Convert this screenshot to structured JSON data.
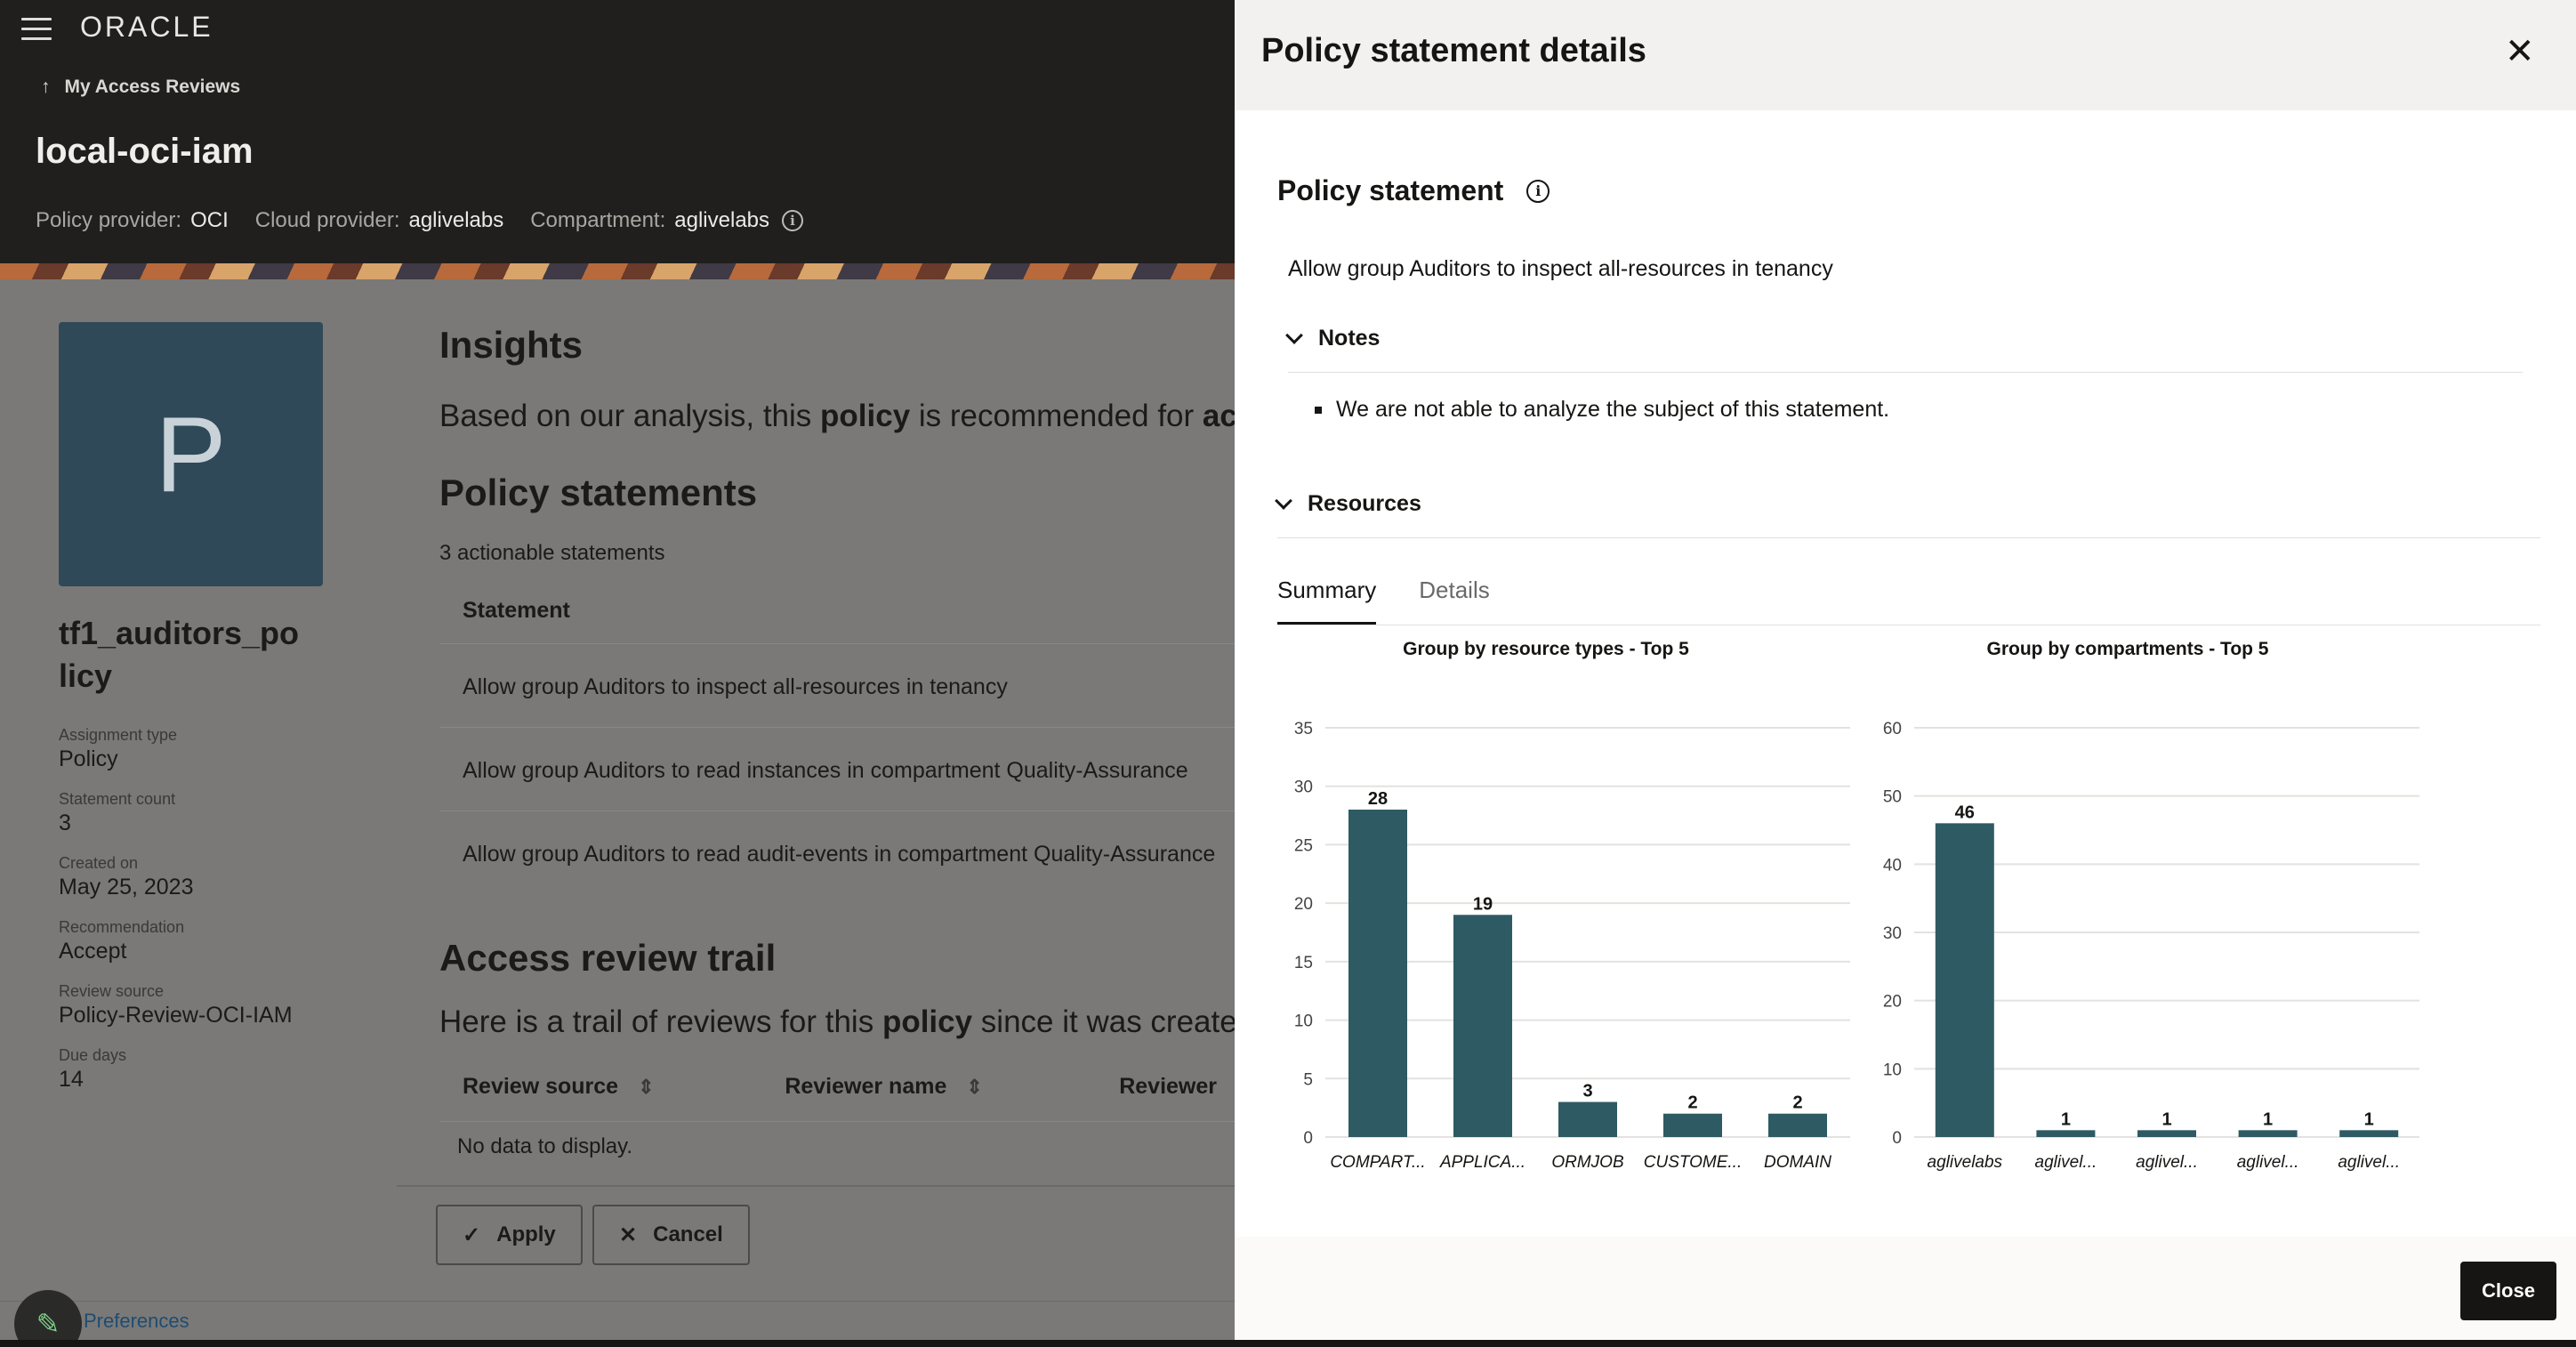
{
  "header": {
    "brand": "ORACLE",
    "back_link": "My Access Reviews",
    "title": "local-oci-iam",
    "policy_provider_label": "Policy provider:",
    "policy_provider": "OCI",
    "cloud_provider_label": "Cloud provider:",
    "cloud_provider": "aglivelabs",
    "compartment_label": "Compartment:",
    "compartment": "aglivelabs"
  },
  "assignment": {
    "avatar_letter": "P",
    "name": "tf1_auditors_po licy",
    "props": [
      {
        "label": "Assignment type",
        "value": "Policy"
      },
      {
        "label": "Statement count",
        "value": "3"
      },
      {
        "label": "Created on",
        "value": "May 25, 2023"
      },
      {
        "label": "Recommendation",
        "value": "Accept"
      },
      {
        "label": "Review source",
        "value": "Policy-Review-OCI-IAM"
      },
      {
        "label": "Due days",
        "value": "14"
      }
    ]
  },
  "main": {
    "insights_heading": "Insights",
    "insight_pre": "Based on our analysis, this ",
    "insight_bold": "policy",
    "insight_post": " is recommended for ",
    "insight_cut": "ac",
    "policy_statements_heading": "Policy statements",
    "actionable_count": "3 actionable statements",
    "statement_col": "Statement",
    "statements": [
      "Allow group Auditors to inspect all-resources in tenancy",
      "Allow group Auditors to read instances in compartment Quality-Assurance",
      "Allow group Auditors to read audit-events in compartment Quality-Assurance"
    ],
    "trail_heading": "Access review trail",
    "trail_pre": "Here is a trail of reviews for this ",
    "trail_bold": "policy",
    "trail_post": " since it was create",
    "trail_cols": [
      "Review source",
      "Reviewer name",
      "Reviewer"
    ],
    "no_data": "No data to display.",
    "apply": "Apply",
    "cancel": "Cancel",
    "preferences": "Preferences"
  },
  "drawer": {
    "title": "Policy statement details",
    "ps_heading": "Policy statement",
    "statement": "Allow group Auditors to inspect all-resources in tenancy",
    "notes_label": "Notes",
    "note": "We are not able to analyze the subject of this statement.",
    "resources_label": "Resources",
    "tabs": [
      "Summary",
      "Details"
    ],
    "close": "Close"
  },
  "colors": {
    "bar": "#2e5a63",
    "accent_dark": "#161513",
    "link": "#1f4c72"
  },
  "chart_data": [
    {
      "type": "bar",
      "title": "Group by resource types - Top 5",
      "categories": [
        "COMPART...",
        "APPLICA...",
        "ORMJOB",
        "CUSTOME...",
        "DOMAIN"
      ],
      "values": [
        28,
        19,
        3,
        2,
        2
      ],
      "ylim": [
        0,
        35
      ],
      "yticks": [
        0,
        5,
        10,
        15,
        20,
        25,
        30,
        35
      ],
      "grid": true
    },
    {
      "type": "bar",
      "title": "Group by compartments - Top 5",
      "categories": [
        "aglivelabs",
        "aglivel...",
        "aglivel...",
        "aglivel...",
        "aglivel..."
      ],
      "values": [
        46,
        1,
        1,
        1,
        1
      ],
      "ylim": [
        0,
        60
      ],
      "yticks": [
        0,
        10,
        20,
        30,
        40,
        50,
        60
      ],
      "grid": true
    }
  ]
}
